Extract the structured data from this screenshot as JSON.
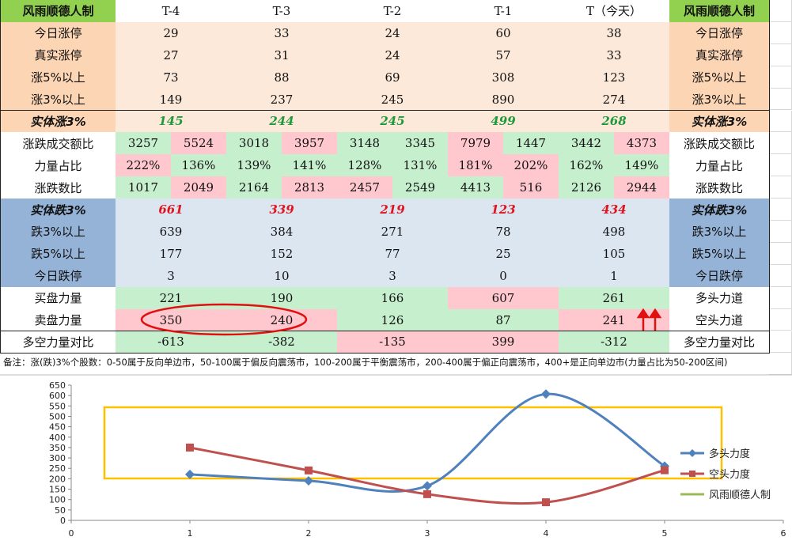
{
  "table": {
    "header": [
      "风雨顺德人制",
      "T-4",
      "T-3",
      "T-2",
      "T-1",
      "T（今天）",
      "风雨顺德人制"
    ],
    "rows": [
      {
        "label": "今日涨停",
        "values": [
          "29",
          "33",
          "24",
          "60",
          "38"
        ],
        "right": "今日涨停",
        "label_fill": "#fcd5b4",
        "fill": "#fde9d9"
      },
      {
        "label": "真实涨停",
        "values": [
          "27",
          "31",
          "24",
          "57",
          "33"
        ],
        "right": "真实涨停",
        "label_fill": "#fcd5b4",
        "fill": "#fde9d9"
      },
      {
        "label": "涨5%以上",
        "values": [
          "73",
          "88",
          "69",
          "308",
          "123"
        ],
        "right": "涨5%以上",
        "label_fill": "#fcd5b4",
        "fill": "#fde9d9"
      },
      {
        "label": "涨3%以上",
        "values": [
          "149",
          "237",
          "245",
          "890",
          "274"
        ],
        "right": "涨3%以上",
        "label_fill": "#fcd5b4",
        "fill": "#fde9d9"
      },
      {
        "label": "实体涨3%",
        "values": [
          "145",
          "244",
          "245",
          "499",
          "268"
        ],
        "right": "实体涨3%",
        "label_fill": "#fcd5b4",
        "fill": "#fde9d9",
        "text_color": "#1e9a3c",
        "strong": true
      },
      {
        "label": "涨跌成交额比",
        "values": [
          [
            "3257",
            "5524"
          ],
          [
            "3018",
            "3957"
          ],
          [
            "3148",
            "3345"
          ],
          [
            "7979",
            "1447"
          ],
          [
            "3442",
            "4373"
          ]
        ],
        "right": "涨跌成交额比",
        "label_fill": "#ffffff",
        "fill": [
          [
            "#c6efce",
            "#ffc7ce"
          ],
          [
            "#c6efce",
            "#ffc7ce"
          ],
          [
            "#c6efce",
            "#c6efce"
          ],
          [
            "#ffc7ce",
            "#c6efce"
          ],
          [
            "#c6efce",
            "#ffc7ce"
          ]
        ]
      },
      {
        "label": "力量占比",
        "values": [
          [
            "222%",
            "136%"
          ],
          [
            "139%",
            "141%"
          ],
          [
            "128%",
            "131%"
          ],
          [
            "181%",
            "202%"
          ],
          [
            "162%",
            "149%"
          ]
        ],
        "right": "力量占比",
        "label_fill": "#ffffff",
        "fill": [
          [
            "#ffc7ce",
            "#c6efce"
          ],
          [
            "#c6efce",
            "#c6efce"
          ],
          [
            "#c6efce",
            "#c6efce"
          ],
          [
            "#ffc7ce",
            "#ffc7ce"
          ],
          [
            "#c6efce",
            "#c6efce"
          ]
        ]
      },
      {
        "label": "涨跌数比",
        "values": [
          [
            "1017",
            "2049"
          ],
          [
            "2164",
            "2813"
          ],
          [
            "2457",
            "2549"
          ],
          [
            "4413",
            "516"
          ],
          [
            "2126",
            "2944"
          ]
        ],
        "right": "涨跌数比",
        "label_fill": "#ffffff",
        "fill": [
          [
            "#c6efce",
            "#ffc7ce"
          ],
          [
            "#c6efce",
            "#ffc7ce"
          ],
          [
            "#ffc7ce",
            "#c6efce"
          ],
          [
            "#c6efce",
            "#ffc7ce"
          ],
          [
            "#c6efce",
            "#ffc7ce"
          ]
        ]
      },
      {
        "label": "实体跌3%",
        "values": [
          "661",
          "339",
          "219",
          "123",
          "434"
        ],
        "right": "实体跌3%",
        "label_fill": "#95b3d7",
        "fill": "#dce6f1",
        "text_color": "#e0141e",
        "strong": true
      },
      {
        "label": "跌3%以上",
        "values": [
          "639",
          "384",
          "271",
          "78",
          "498"
        ],
        "right": "跌3%以上",
        "label_fill": "#95b3d7",
        "fill": "#dce6f1"
      },
      {
        "label": "跌5%以上",
        "values": [
          "177",
          "152",
          "77",
          "25",
          "105"
        ],
        "right": "跌5%以上",
        "label_fill": "#95b3d7",
        "fill": "#dce6f1"
      },
      {
        "label": "今日跌停",
        "values": [
          "3",
          "10",
          "3",
          "0",
          "1"
        ],
        "right": "今日跌停",
        "label_fill": "#95b3d7",
        "fill": "#dce6f1"
      },
      {
        "label": "买盘力量",
        "values": [
          "221",
          "190",
          "166",
          "607",
          "261"
        ],
        "right": "多头力道",
        "label_fill": "#ffffff",
        "fill": [
          "#c6efce",
          "#c6efce",
          "#c6efce",
          "#ffc7ce",
          "#c6efce"
        ]
      },
      {
        "label": "卖盘力量",
        "values": [
          "350",
          "240",
          "126",
          "87",
          "241"
        ],
        "right": "空头力道",
        "label_fill": "#ffffff",
        "fill": [
          "#ffc7ce",
          "#ffc7ce",
          "#c6efce",
          "#c6efce",
          "#ffc7ce"
        ]
      },
      {
        "label": "多空力量对比",
        "values": [
          "-613",
          "-382",
          "-135",
          "399",
          "-312"
        ],
        "right": "多空力量对比",
        "label_fill": "#ffffff",
        "fill": [
          "#c6efce",
          "#c6efce",
          "#ffc7ce",
          "#ffc7ce",
          "#c6efce"
        ]
      }
    ],
    "header_fill": "#92d050",
    "note": "备注：涨(跌)3%个股数：0-50属于反向单边市，50-100属于偏反向震荡市，100-200属于平衡震荡市，200-400属于偏正向震荡市，400+是正向单边市(力量占比为50-200区间)"
  },
  "chart_data": {
    "type": "line",
    "x": [
      1,
      2,
      3,
      4,
      5
    ],
    "series": [
      {
        "name": "多头力度",
        "color": "#4f81bd",
        "values": [
          221,
          190,
          166,
          607,
          261
        ]
      },
      {
        "name": "空头力度",
        "color": "#c0504d",
        "values": [
          350,
          240,
          126,
          87,
          241
        ]
      },
      {
        "name": "风雨顺德人制",
        "color": "#9bbb59",
        "values": [
          null,
          null,
          null,
          null,
          null
        ]
      }
    ],
    "xlim": [
      0,
      6
    ],
    "xticks": [
      0,
      1,
      2,
      3,
      4,
      5,
      6
    ],
    "ylim": [
      0,
      650
    ],
    "yticks": [
      0,
      50,
      100,
      150,
      200,
      250,
      300,
      350,
      400,
      450,
      500,
      550,
      600,
      650
    ],
    "smooth": true
  }
}
